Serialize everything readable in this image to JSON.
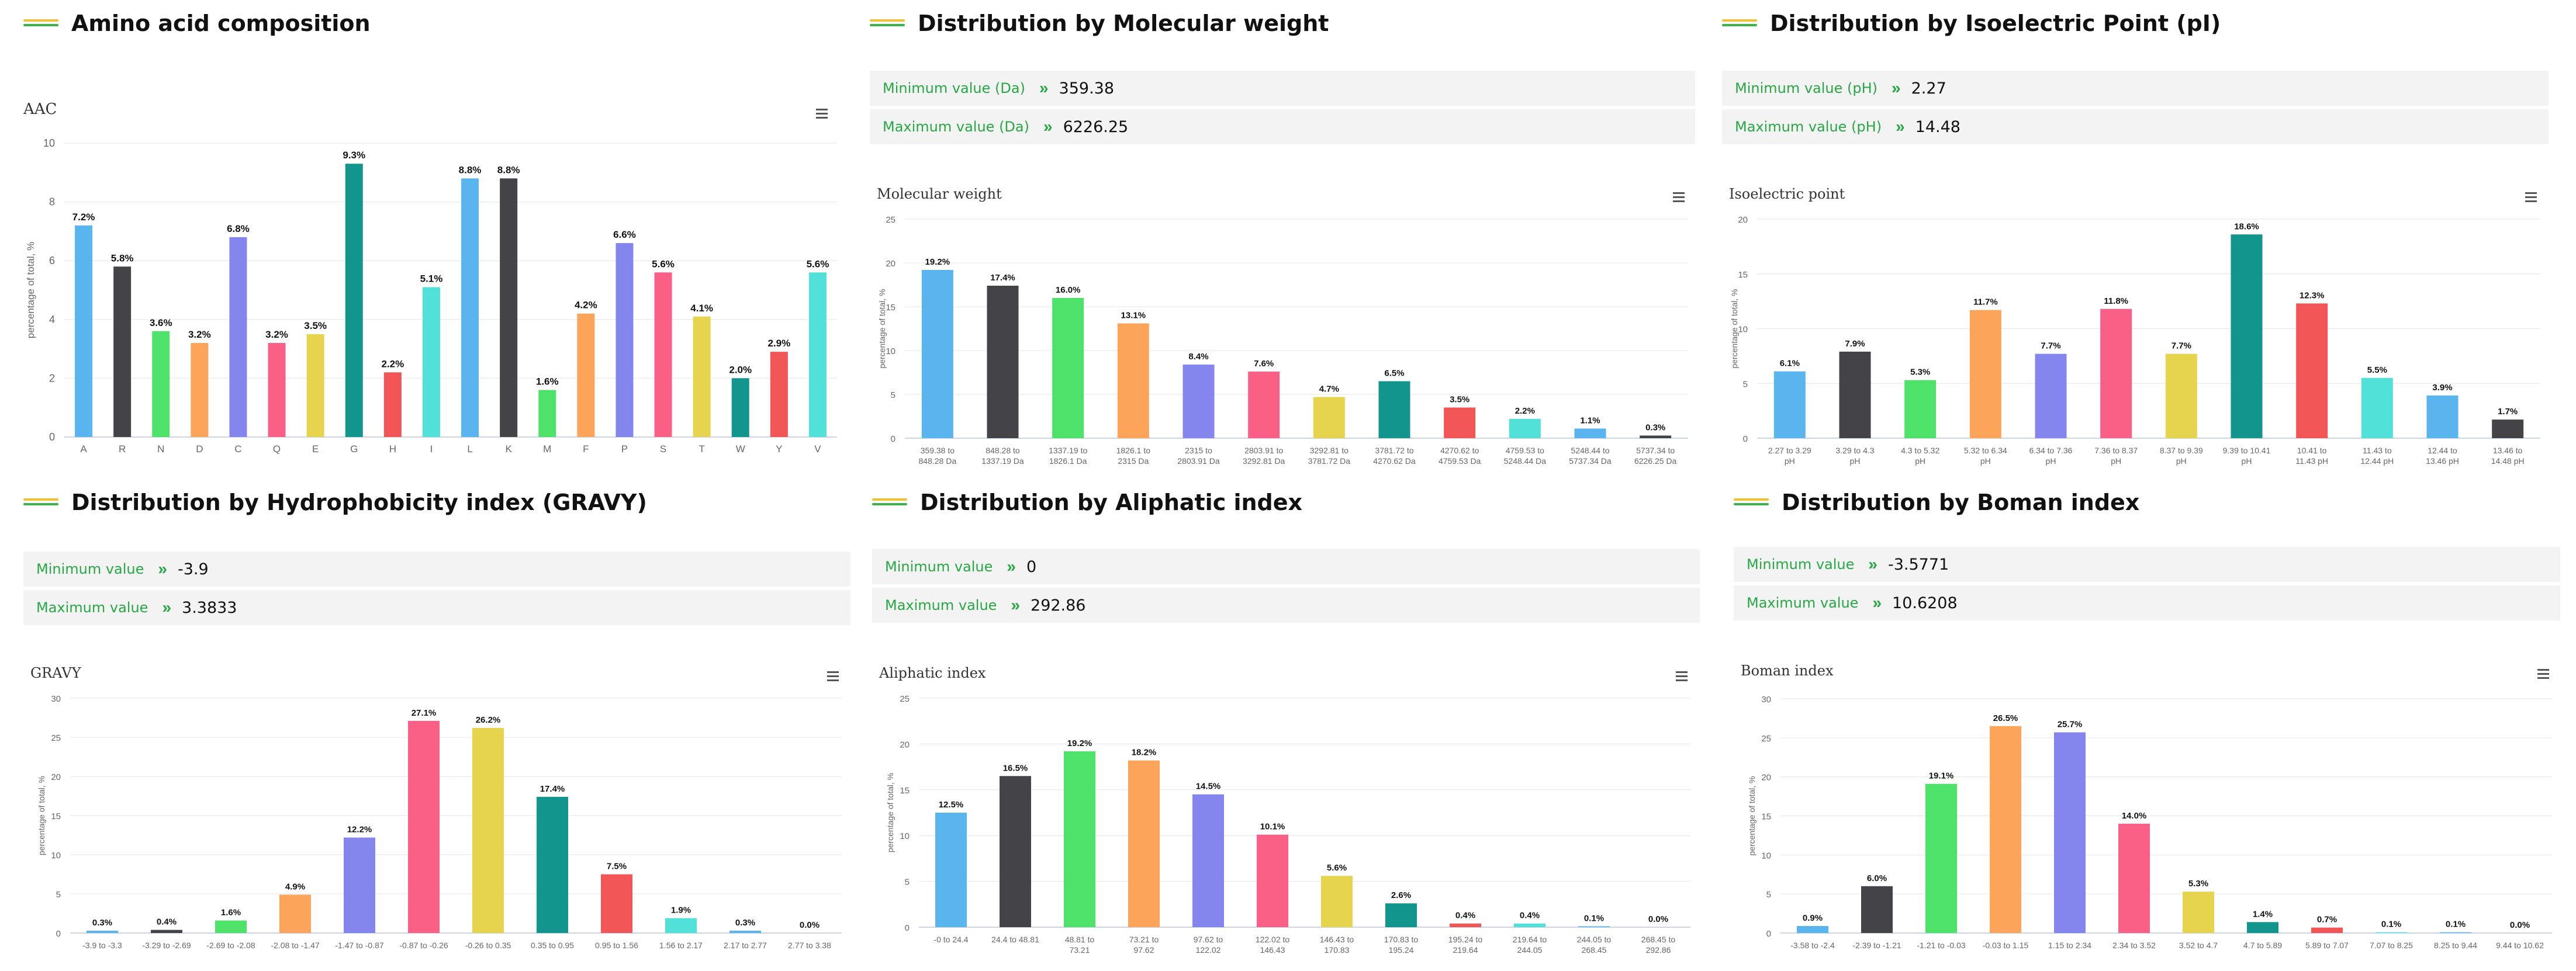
{
  "panels": {
    "aac": {
      "title": "Amino acid composition"
    },
    "mw": {
      "title": "Distribution by Molecular weight",
      "min_label": "Minimum value (Da)",
      "min_value": "359.38",
      "max_label": "Maximum value (Da)",
      "max_value": "6226.25"
    },
    "pi": {
      "title": "Distribution by Isoelectric Point (pI)",
      "min_label": "Minimum value (pH)",
      "min_value": "2.27",
      "max_label": "Maximum value (pH)",
      "max_value": "14.48"
    },
    "gravy": {
      "title": "Distribution by Hydrophobicity index (GRAVY)",
      "min_label": "Minimum value",
      "min_value": "-3.9",
      "max_label": "Maximum value",
      "max_value": "3.3833"
    },
    "ali": {
      "title": "Distribution by Aliphatic index",
      "min_label": "Minimum value",
      "min_value": "0",
      "max_label": "Maximum value",
      "max_value": "292.86"
    },
    "boman": {
      "title": "Distribution by Boman index",
      "min_label": "Minimum value",
      "min_value": "-3.5771",
      "max_label": "Maximum value",
      "max_value": "10.6208"
    }
  },
  "icons": {
    "title_mark": "double-line-icon",
    "arrow": "double-chevron-right-icon",
    "menu": "hamburger-menu-icon"
  },
  "colors": {
    "accent_green": "#27a844",
    "accent_yellow": "#f2c12e",
    "info_bg": "#f3f3f3",
    "arrow_glyph": "»",
    "menu_glyph": "≡"
  },
  "chart_data": [
    {
      "id": "aac",
      "type": "bar",
      "title": "AAC",
      "xlabel": "",
      "ylabel": "percentage of total, %",
      "ylim": [
        0,
        10
      ],
      "yticks": [
        0,
        2,
        4,
        6,
        8,
        10
      ],
      "categories": [
        "A",
        "R",
        "N",
        "D",
        "C",
        "Q",
        "E",
        "G",
        "H",
        "I",
        "L",
        "K",
        "M",
        "F",
        "P",
        "S",
        "T",
        "W",
        "Y",
        "V"
      ],
      "values": [
        7.2,
        5.8,
        3.6,
        3.2,
        6.8,
        3.2,
        3.5,
        9.3,
        2.2,
        5.1,
        8.8,
        8.8,
        1.6,
        4.2,
        6.6,
        5.6,
        4.1,
        2.0,
        2.9,
        5.6
      ],
      "labels": [
        "7.2%",
        "5.8%",
        "3.6%",
        "3.2%",
        "6.8%",
        "3.2%",
        "3.5%",
        "9.3%",
        "2.2%",
        "5.1%",
        "8.8%",
        "8.8%",
        "1.6%",
        "4.2%",
        "6.6%",
        "5.6%",
        "4.1%",
        "2.0%",
        "2.9%",
        "5.6%"
      ],
      "colors": [
        "#5ab4ee",
        "#444448",
        "#4ee26a",
        "#fba45a",
        "#8585ee",
        "#fa5f85",
        "#e6d34e",
        "#12958d",
        "#f25555",
        "#52e1d8",
        "#5ab4ee",
        "#444448",
        "#4ee26a",
        "#fba45a",
        "#8585ee",
        "#fa5f85",
        "#e6d34e",
        "#12958d",
        "#f25555",
        "#52e1d8"
      ]
    },
    {
      "id": "mw",
      "type": "bar",
      "title": "Molecular weight",
      "xlabel": "",
      "ylabel": "percentage of total, %",
      "ylim": [
        0,
        25
      ],
      "yticks": [
        0,
        5,
        10,
        15,
        20,
        25
      ],
      "categories": [
        [
          "359.38 to",
          "848.28 Da"
        ],
        [
          "848.28 to",
          "1337.19 Da"
        ],
        [
          "1337.19 to",
          "1826.1 Da"
        ],
        [
          "1826.1 to",
          "2315 Da"
        ],
        [
          "2315 to",
          "2803.91 Da"
        ],
        [
          "2803.91 to",
          "3292.81 Da"
        ],
        [
          "3292.81 to",
          "3781.72 Da"
        ],
        [
          "3781.72 to",
          "4270.62 Da"
        ],
        [
          "4270.62 to",
          "4759.53 Da"
        ],
        [
          "4759.53 to",
          "5248.44 Da"
        ],
        [
          "5248.44 to",
          "5737.34 Da"
        ],
        [
          "5737.34 to",
          "6226.25 Da"
        ]
      ],
      "values": [
        19.2,
        17.4,
        16.0,
        13.1,
        8.4,
        7.6,
        4.7,
        6.5,
        3.5,
        2.2,
        1.1,
        0.3
      ],
      "labels": [
        "19.2%",
        "17.4%",
        "16.0%",
        "13.1%",
        "8.4%",
        "7.6%",
        "4.7%",
        "6.5%",
        "3.5%",
        "2.2%",
        "1.1%",
        "0.3%"
      ],
      "colors": [
        "#5ab4ee",
        "#444448",
        "#4ee26a",
        "#fba45a",
        "#8585ee",
        "#fa5f85",
        "#e6d34e",
        "#12958d",
        "#f25555",
        "#52e1d8",
        "#5ab4ee",
        "#444448"
      ]
    },
    {
      "id": "pi",
      "type": "bar",
      "title": "Isoelectric point",
      "xlabel": "",
      "ylabel": "percentage of total, %",
      "ylim": [
        0,
        20
      ],
      "yticks": [
        0,
        5,
        10,
        15,
        20
      ],
      "categories": [
        [
          "2.27 to 3.29",
          "pH"
        ],
        [
          "3.29 to 4.3",
          "pH"
        ],
        [
          "4.3 to 5.32",
          "pH"
        ],
        [
          "5.32 to 6.34",
          "pH"
        ],
        [
          "6.34 to 7.36",
          "pH"
        ],
        [
          "7.36 to 8.37",
          "pH"
        ],
        [
          "8.37 to 9.39",
          "pH"
        ],
        [
          "9.39 to 10.41",
          "pH"
        ],
        [
          "10.41 to",
          "11.43 pH"
        ],
        [
          "11.43 to",
          "12.44 pH"
        ],
        [
          "12.44 to",
          "13.46 pH"
        ],
        [
          "13.46 to",
          "14.48 pH"
        ]
      ],
      "values": [
        6.1,
        7.9,
        5.3,
        11.7,
        7.7,
        11.8,
        7.7,
        18.6,
        12.3,
        5.5,
        3.9,
        1.7
      ],
      "labels": [
        "6.1%",
        "7.9%",
        "5.3%",
        "11.7%",
        "7.7%",
        "11.8%",
        "7.7%",
        "18.6%",
        "12.3%",
        "5.5%",
        "3.9%",
        "1.7%"
      ],
      "colors": [
        "#5ab4ee",
        "#444448",
        "#4ee26a",
        "#fba45a",
        "#8585ee",
        "#fa5f85",
        "#e6d34e",
        "#12958d",
        "#f25555",
        "#52e1d8",
        "#5ab4ee",
        "#444448"
      ]
    },
    {
      "id": "gravy",
      "type": "bar",
      "title": "GRAVY",
      "xlabel": "",
      "ylabel": "percentage of total, %",
      "ylim": [
        0,
        30
      ],
      "yticks": [
        0,
        5,
        10,
        15,
        20,
        25,
        30
      ],
      "categories": [
        [
          "-3.9 to -3.3"
        ],
        [
          "-3.29 to -2.69"
        ],
        [
          "-2.69 to -2.08"
        ],
        [
          "-2.08 to -1.47"
        ],
        [
          "-1.47 to -0.87"
        ],
        [
          "-0.87 to -0.26"
        ],
        [
          "-0.26 to 0.35"
        ],
        [
          "0.35 to 0.95"
        ],
        [
          "0.95 to 1.56"
        ],
        [
          "1.56 to 2.17"
        ],
        [
          "2.17 to 2.77"
        ],
        [
          "2.77 to 3.38"
        ]
      ],
      "values": [
        0.3,
        0.4,
        1.6,
        4.9,
        12.2,
        27.1,
        26.2,
        17.4,
        7.5,
        1.9,
        0.3,
        0.0
      ],
      "labels": [
        "0.3%",
        "0.4%",
        "1.6%",
        "4.9%",
        "12.2%",
        "27.1%",
        "26.2%",
        "17.4%",
        "7.5%",
        "1.9%",
        "0.3%",
        "0.0%"
      ],
      "colors": [
        "#5ab4ee",
        "#444448",
        "#4ee26a",
        "#fba45a",
        "#8585ee",
        "#fa5f85",
        "#e6d34e",
        "#12958d",
        "#f25555",
        "#52e1d8",
        "#5ab4ee",
        "#444448"
      ]
    },
    {
      "id": "ali",
      "type": "bar",
      "title": "Aliphatic index",
      "xlabel": "",
      "ylabel": "percentage of total, %",
      "ylim": [
        0,
        25
      ],
      "yticks": [
        0,
        5,
        10,
        15,
        20,
        25
      ],
      "categories": [
        [
          "-0 to 24.4"
        ],
        [
          "24.4 to 48.81"
        ],
        [
          "48.81 to",
          "73.21"
        ],
        [
          "73.21 to",
          "97.62"
        ],
        [
          "97.62 to",
          "122.02"
        ],
        [
          "122.02 to",
          "146.43"
        ],
        [
          "146.43 to",
          "170.83"
        ],
        [
          "170.83 to",
          "195.24"
        ],
        [
          "195.24 to",
          "219.64"
        ],
        [
          "219.64 to",
          "244.05"
        ],
        [
          "244.05 to",
          "268.45"
        ],
        [
          "268.45 to",
          "292.86"
        ]
      ],
      "values": [
        12.5,
        16.5,
        19.2,
        18.2,
        14.5,
        10.1,
        5.6,
        2.6,
        0.4,
        0.4,
        0.1,
        0.0
      ],
      "labels": [
        "12.5%",
        "16.5%",
        "19.2%",
        "18.2%",
        "14.5%",
        "10.1%",
        "5.6%",
        "2.6%",
        "0.4%",
        "0.4%",
        "0.1%",
        "0.0%"
      ],
      "colors": [
        "#5ab4ee",
        "#444448",
        "#4ee26a",
        "#fba45a",
        "#8585ee",
        "#fa5f85",
        "#e6d34e",
        "#12958d",
        "#f25555",
        "#52e1d8",
        "#5ab4ee",
        "#444448"
      ]
    },
    {
      "id": "boman",
      "type": "bar",
      "title": "Boman index",
      "xlabel": "",
      "ylabel": "percentage of total, %",
      "ylim": [
        0,
        30
      ],
      "yticks": [
        0,
        5,
        10,
        15,
        20,
        25,
        30
      ],
      "categories": [
        [
          "-3.58 to -2.4"
        ],
        [
          "-2.39 to -1.21"
        ],
        [
          "-1.21 to -0.03"
        ],
        [
          "-0.03 to 1.15"
        ],
        [
          "1.15 to 2.34"
        ],
        [
          "2.34 to 3.52"
        ],
        [
          "3.52 to 4.7"
        ],
        [
          "4.7 to 5.89"
        ],
        [
          "5.89 to 7.07"
        ],
        [
          "7.07 to 8.25"
        ],
        [
          "8.25 to 9.44"
        ],
        [
          "9.44 to 10.62"
        ]
      ],
      "values": [
        0.9,
        6.0,
        19.1,
        26.5,
        25.7,
        14.0,
        5.3,
        1.4,
        0.7,
        0.1,
        0.1,
        0.0
      ],
      "labels": [
        "0.9%",
        "6.0%",
        "19.1%",
        "26.5%",
        "25.7%",
        "14.0%",
        "5.3%",
        "1.4%",
        "0.7%",
        "0.1%",
        "0.1%",
        "0.0%"
      ],
      "colors": [
        "#5ab4ee",
        "#444448",
        "#4ee26a",
        "#fba45a",
        "#8585ee",
        "#fa5f85",
        "#e6d34e",
        "#12958d",
        "#f25555",
        "#52e1d8",
        "#5ab4ee",
        "#444448"
      ]
    }
  ]
}
